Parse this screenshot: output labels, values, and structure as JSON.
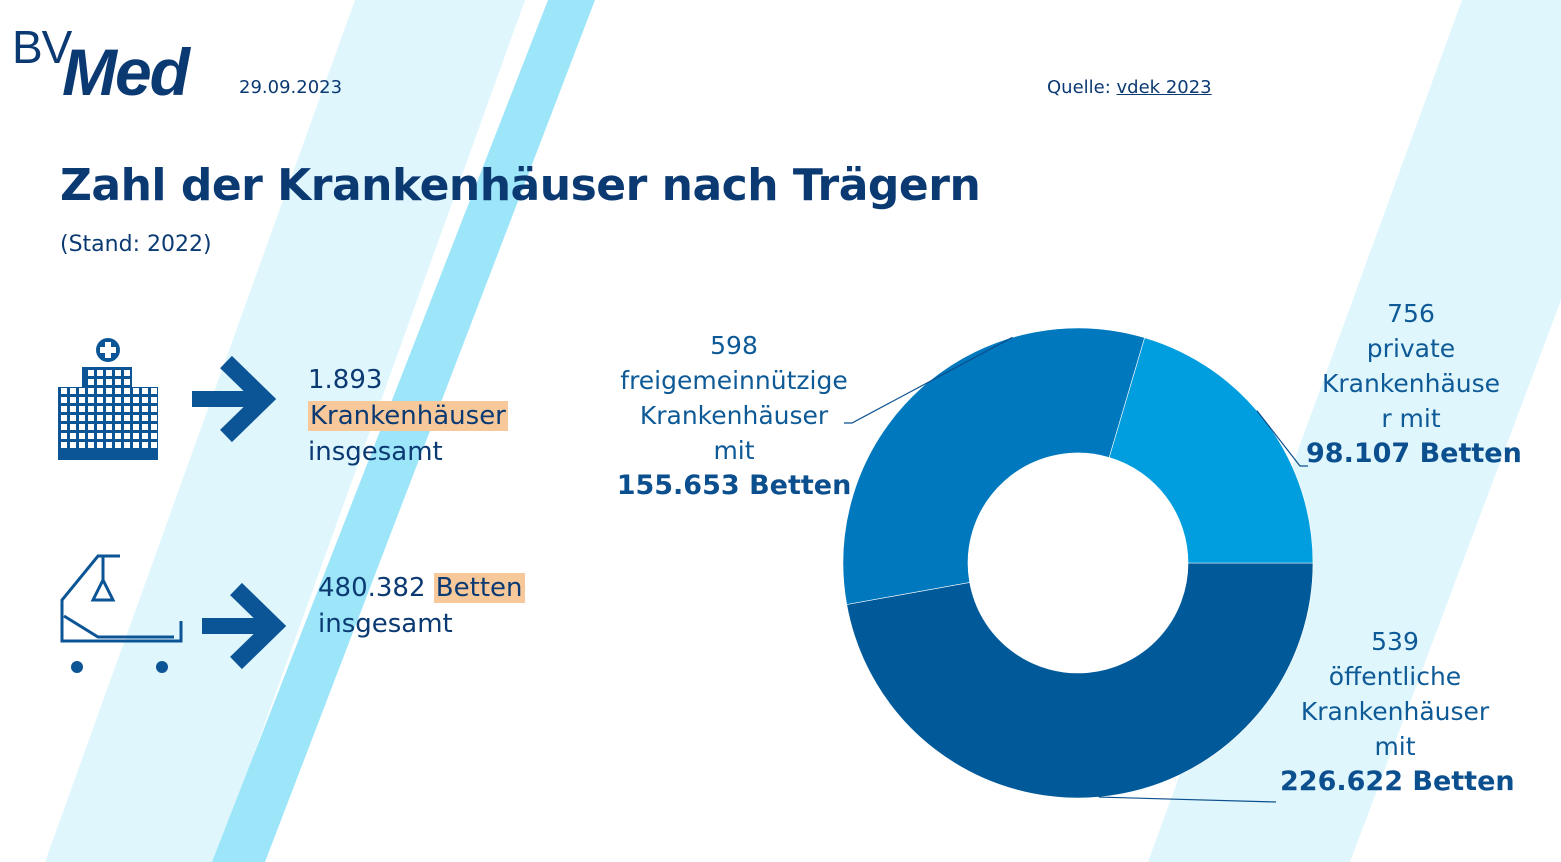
{
  "header": {
    "logo_bv": "BV",
    "logo_med": "Med",
    "date": "29.09.2023",
    "source_prefix": "Quelle: ",
    "source_link": "vdek 2023"
  },
  "title": "Zahl der Krankenhäuser nach Trägern",
  "subtitle": "(Stand: 2022)",
  "icons": {
    "hospital": "hospital-building-icon",
    "bed": "hospital-bed-icon",
    "arrow": "arrow-right-icon"
  },
  "stats": {
    "hospitals": {
      "number": "1.893",
      "highlight": "Krankenhäuser",
      "suffix": "insgesamt"
    },
    "beds": {
      "number": "480.382",
      "highlight": "Betten",
      "suffix": "insgesamt"
    }
  },
  "colors": {
    "navy": "#0b3a73",
    "highlight": "#f7c99a",
    "stripe_light": "#dff6fd",
    "stripe_mid": "#9de6fa"
  },
  "chart_data": {
    "type": "pie",
    "variant": "donut",
    "title": "Zahl der Krankenhäuser nach Trägern",
    "unit": "Betten",
    "start": "3 o'clock, clockwise",
    "series": [
      {
        "name": "öffentliche",
        "hospitals": 539,
        "value": 226622,
        "color": "#005a9a",
        "label_lines": [
          "539",
          "öffentliche",
          "Krankenhäuser",
          "mit"
        ],
        "label_bold": "226.622 Betten"
      },
      {
        "name": "freigemeinnützige",
        "hospitals": 598,
        "value": 155653,
        "color": "#0078bd",
        "label_lines": [
          "598",
          "freigemeinnützige",
          "Krankenhäuser",
          "mit"
        ],
        "label_bold": "155.653 Betten"
      },
      {
        "name": "private",
        "hospitals": 756,
        "value": 98107,
        "color": "#009ede",
        "label_lines": [
          "756",
          "private",
          "Krankenhäuse",
          "r mit"
        ],
        "label_bold": "98.107 Betten"
      }
    ],
    "total": 480382
  }
}
